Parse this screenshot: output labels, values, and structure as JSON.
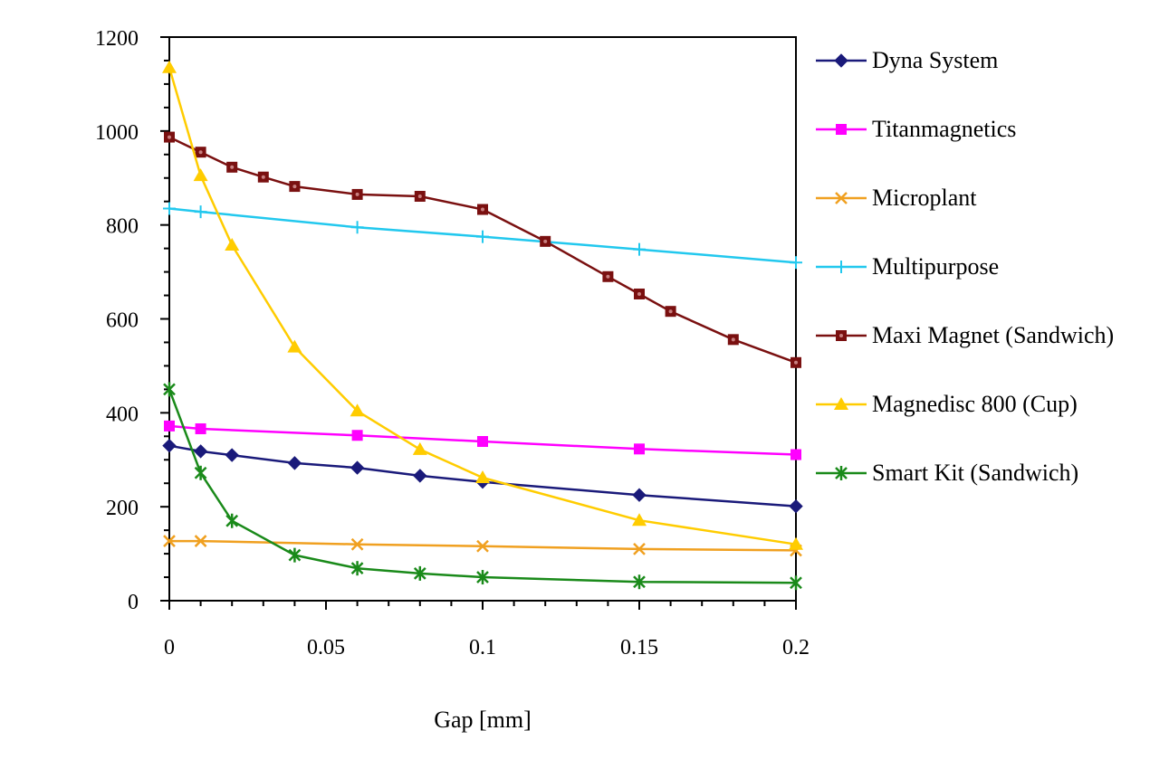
{
  "chart_data": {
    "type": "line",
    "title": "",
    "xlabel": "Gap [mm]",
    "ylabel": "",
    "xlim": [
      0,
      0.2
    ],
    "ylim": [
      0,
      1200
    ],
    "x_ticks": [
      "0",
      "0.05",
      "0.1",
      "0.15",
      "0.2"
    ],
    "y_ticks": [
      "0",
      "200",
      "400",
      "600",
      "800",
      "1000",
      "1200"
    ],
    "grid": false,
    "legend_position": "right",
    "series": [
      {
        "name": "Dyna System",
        "color": "#1a1a7a",
        "marker": "diamond",
        "x": [
          0,
          0.01,
          0.02,
          0.04,
          0.06,
          0.08,
          0.1,
          0.15,
          0.2
        ],
        "y": [
          330,
          318,
          310,
          293,
          283,
          266,
          253,
          225,
          201
        ]
      },
      {
        "name": "Titanmagnetics",
        "color": "#ff00ff",
        "marker": "square",
        "x": [
          0,
          0.01,
          0.06,
          0.1,
          0.15,
          0.2
        ],
        "y": [
          372,
          366,
          352,
          339,
          323,
          311
        ]
      },
      {
        "name": "Microplant",
        "color": "#f0a020",
        "marker": "x",
        "x": [
          0,
          0.01,
          0.06,
          0.1,
          0.15,
          0.2
        ],
        "y": [
          127,
          127,
          120,
          116,
          110,
          107
        ]
      },
      {
        "name": "Multipurpose",
        "color": "#22c8ee",
        "marker": "plus",
        "x": [
          0,
          0.01,
          0.06,
          0.1,
          0.15,
          0.2
        ],
        "y": [
          835,
          828,
          795,
          775,
          748,
          720
        ]
      },
      {
        "name": "Maxi Magnet (Sandwich)",
        "color": "#7a1010",
        "marker": "square-dot",
        "x": [
          0,
          0.01,
          0.02,
          0.03,
          0.04,
          0.06,
          0.08,
          0.1,
          0.12,
          0.14,
          0.15,
          0.16,
          0.18,
          0.2
        ],
        "y": [
          987,
          955,
          923,
          902,
          882,
          865,
          861,
          833,
          765,
          690,
          653,
          616,
          556,
          507
        ]
      },
      {
        "name": "Magnedisc 800 (Cup)",
        "color": "#ffcc00",
        "marker": "triangle",
        "x": [
          0,
          0.01,
          0.02,
          0.04,
          0.06,
          0.08,
          0.1,
          0.15,
          0.2
        ],
        "y": [
          1135,
          905,
          757,
          540,
          404,
          322,
          262,
          171,
          120
        ]
      },
      {
        "name": "Smart Kit (Sandwich)",
        "color": "#1a8a1a",
        "marker": "asterisk",
        "x": [
          0,
          0.01,
          0.02,
          0.04,
          0.06,
          0.08,
          0.1,
          0.15,
          0.2
        ],
        "y": [
          450,
          272,
          170,
          97,
          69,
          58,
          50,
          40,
          38
        ]
      }
    ]
  }
}
